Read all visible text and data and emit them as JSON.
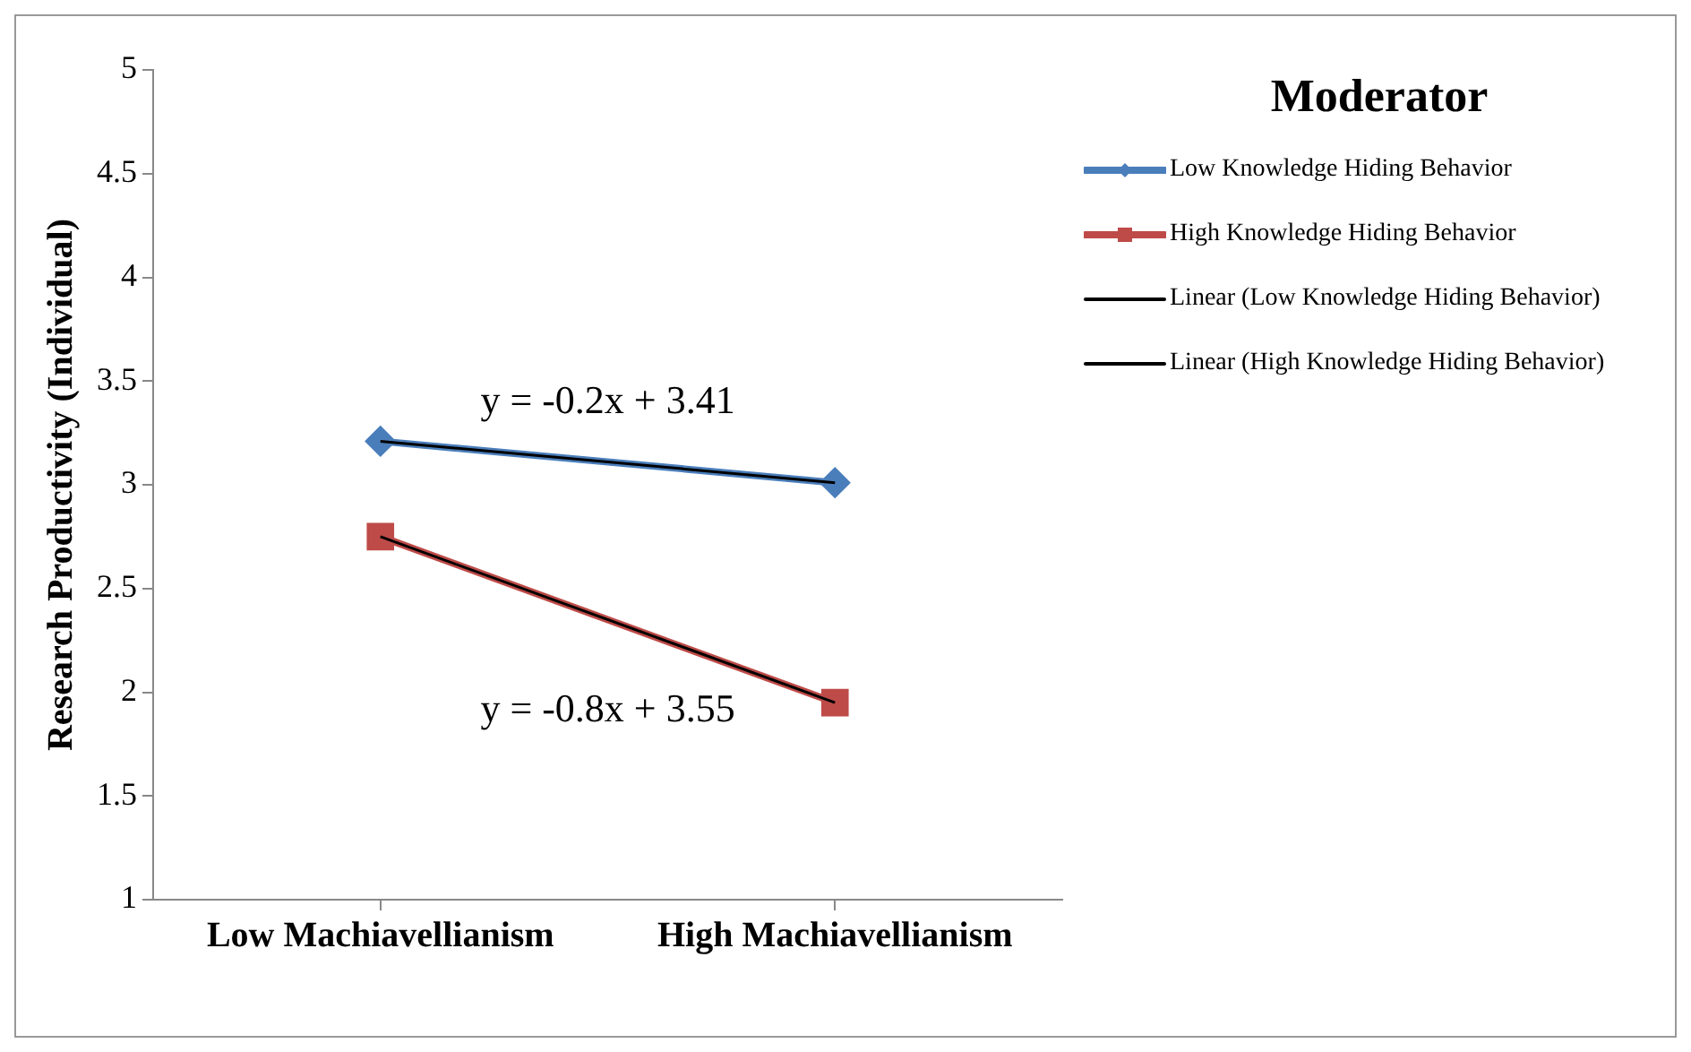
{
  "chart_data": {
    "type": "line",
    "ylabel": "Research Productivity (Individual)",
    "legend_title": "Moderator",
    "categories": [
      "Low Machiavellianism",
      "High Machiavellianism"
    ],
    "series": [
      {
        "name": "Low Knowledge Hiding Behavior",
        "color": "#4a7ebb",
        "values": [
          3.21,
          3.01
        ],
        "marker": "diamond"
      },
      {
        "name": "High Knowledge Hiding Behavior",
        "color": "#be4b48",
        "values": [
          2.75,
          1.95
        ],
        "marker": "square"
      },
      {
        "name": "Linear (Low Knowledge Hiding Behavior)",
        "color": "#000000",
        "values": [
          3.21,
          3.01
        ],
        "marker": "none"
      },
      {
        "name": "Linear (High Knowledge Hiding Behavior)",
        "color": "#000000",
        "values": [
          2.75,
          1.95
        ],
        "marker": "none"
      }
    ],
    "annotations": [
      "y = -0.2x + 3.41",
      "y = -0.8x + 3.55"
    ],
    "ylim": [
      1,
      5
    ],
    "yticks": [
      1,
      1.5,
      2,
      2.5,
      3,
      3.5,
      4,
      4.5,
      5
    ],
    "grid": false,
    "legend": "right"
  }
}
